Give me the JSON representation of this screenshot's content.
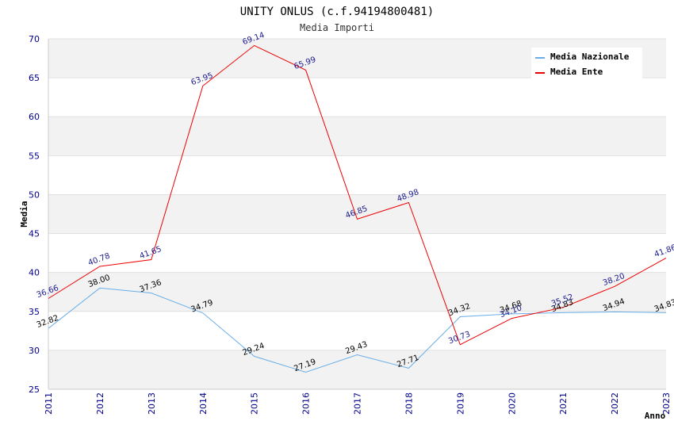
{
  "chart_data": {
    "type": "line",
    "title": "UNITY ONLUS (c.f.94194800481)",
    "subtitle": "Media Importi",
    "xlabel": "Anno",
    "ylabel": "Media",
    "ylim": [
      25,
      70
    ],
    "yticks": [
      25,
      30,
      35,
      40,
      45,
      50,
      55,
      60,
      65,
      70
    ],
    "categories": [
      "2011",
      "2012",
      "2013",
      "2014",
      "2015",
      "2016",
      "2017",
      "2018",
      "2019",
      "2020",
      "2021",
      "2022",
      "2023"
    ],
    "grid": true,
    "legend_position": "top-right",
    "series": [
      {
        "name": "Media Nazionale",
        "color": "#6aaee8",
        "values": [
          32.82,
          38.0,
          37.36,
          34.79,
          29.24,
          27.19,
          29.43,
          27.71,
          34.32,
          34.68,
          34.83,
          34.94,
          34.83
        ],
        "labels": [
          "32.82",
          "38.00",
          "37.36",
          "34.79",
          "29.24",
          "27.19",
          "29.43",
          "27.71",
          "34.32",
          "34.68",
          "34.83",
          "34.94",
          "34.83"
        ]
      },
      {
        "name": "Media Ente",
        "color": "#ee0000",
        "values": [
          36.66,
          40.78,
          41.65,
          63.95,
          69.14,
          65.99,
          46.85,
          48.98,
          30.73,
          34.1,
          35.52,
          38.2,
          41.86
        ],
        "labels": [
          "36.66",
          "40.78",
          "41.65",
          "63.95",
          "69.14",
          "65.99",
          "46.85",
          "48.98",
          "30.73",
          "34.10",
          "35.52",
          "38.20",
          "41.86"
        ]
      }
    ]
  }
}
